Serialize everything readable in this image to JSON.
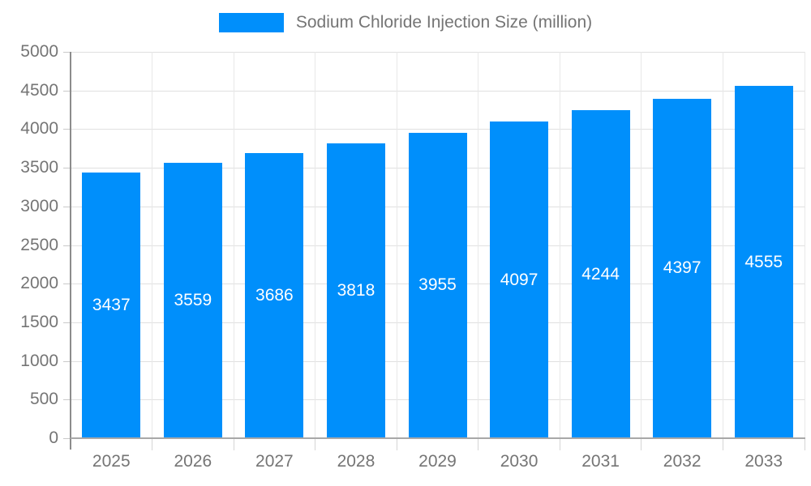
{
  "chart_data": {
    "type": "bar",
    "title": "Sodium Chloride Injection Size (million)",
    "legend": {
      "position": "top-center",
      "label": "Sodium Chloride Injection Size (million)",
      "swatch_color": "#008ffb"
    },
    "categories": [
      "2025",
      "2026",
      "2027",
      "2028",
      "2029",
      "2030",
      "2031",
      "2032",
      "2033"
    ],
    "values": [
      3437,
      3559,
      3686,
      3818,
      3955,
      4097,
      4244,
      4397,
      4555
    ],
    "xlabel": "",
    "ylabel": "",
    "ylim": [
      0,
      5000
    ],
    "y_ticks": [
      0,
      500,
      1000,
      1500,
      2000,
      2500,
      3000,
      3500,
      4000,
      4500,
      5000
    ],
    "grid": true,
    "bar_color": "#008ffb",
    "value_label_color": "#ffffff",
    "axis_text_color": "#757575"
  }
}
